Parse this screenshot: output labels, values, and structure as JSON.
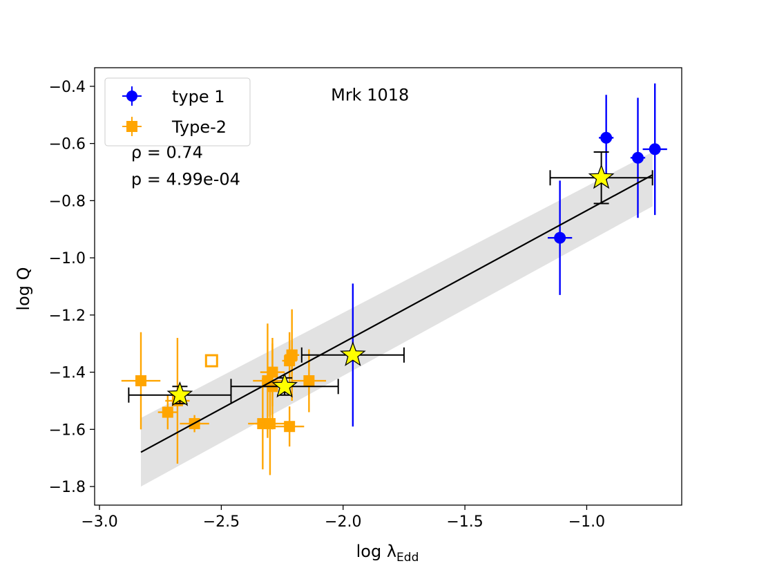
{
  "chart_data": {
    "type": "scatter",
    "title": "",
    "xlabel": "log λ",
    "xlabel_sub": "Edd",
    "ylabel": "log Q",
    "xlim": [
      -3.02,
      -0.61
    ],
    "ylim": [
      -1.865,
      -0.335
    ],
    "xticks": [
      -3.0,
      -2.5,
      -2.0,
      -1.5,
      -1.0
    ],
    "xtick_labels": [
      "−3.0",
      "−2.5",
      "−2.0",
      "−1.5",
      "−1.0"
    ],
    "yticks": [
      -1.8,
      -1.6,
      -1.4,
      -1.2,
      -1.0,
      -0.8,
      -0.6,
      -0.4
    ],
    "ytick_labels": [
      "−1.8",
      "−1.6",
      "−1.4",
      "−1.2",
      "−1.0",
      "−0.8",
      "−0.6",
      "−0.4"
    ],
    "grid": false,
    "legend": {
      "location": "upper-left",
      "entries": [
        {
          "label": "type 1",
          "marker": "circle",
          "color": "#0000ff"
        },
        {
          "label": "Type-2",
          "marker": "square",
          "color": "#ffa500"
        }
      ]
    },
    "annotations": [
      {
        "text": "Mrk 1018",
        "x": -2.05,
        "y": -0.45
      },
      {
        "text": "ρ = 0.74",
        "x": -2.87,
        "y": -0.65
      },
      {
        "text": "p = 4.99e-04",
        "x": -2.87,
        "y": -0.745
      }
    ],
    "fit_line": {
      "x": [
        -2.83,
        -0.73
      ],
      "y": [
        -1.68,
        -0.71
      ],
      "color": "#000000"
    },
    "confidence_band": {
      "x": [
        -2.83,
        -0.73
      ],
      "upper": [
        -1.56,
        -0.63
      ],
      "lower": [
        -1.8,
        -0.82
      ],
      "color": "#dddddd"
    },
    "series": [
      {
        "name": "type 1",
        "marker": "circle",
        "color": "#0000ff",
        "points": [
          {
            "x": -0.92,
            "y": -0.58,
            "xerr": 0.03,
            "yerr": 0.15
          },
          {
            "x": -0.79,
            "y": -0.65,
            "xerr": 0.03,
            "yerr": 0.21
          },
          {
            "x": -0.72,
            "y": -0.62,
            "xerr": 0.05,
            "yerr": 0.23
          },
          {
            "x": -1.11,
            "y": -0.93,
            "xerr": 0.05,
            "yerr": 0.2
          },
          {
            "x": -1.96,
            "y": -1.34,
            "xerr": 0.0,
            "yerr": 0.25
          }
        ]
      },
      {
        "name": "Type-2",
        "marker": "square",
        "color": "#ffa500",
        "points": [
          {
            "x": -2.83,
            "y": -1.43,
            "xerr": 0.08,
            "yerr": 0.17
          },
          {
            "x": -2.72,
            "y": -1.54,
            "xerr": 0.04,
            "yerr": 0.06
          },
          {
            "x": -2.68,
            "y": -1.5,
            "xerr": 0.05,
            "yerr": 0.22
          },
          {
            "x": -2.61,
            "y": -1.58,
            "xerr": 0.06,
            "yerr": 0.03
          },
          {
            "x": -2.31,
            "y": -1.43,
            "xerr": 0.06,
            "yerr": 0.2
          },
          {
            "x": -2.29,
            "y": -1.4,
            "xerr": 0.05,
            "yerr": 0.12
          },
          {
            "x": -2.29,
            "y": -1.45,
            "xerr": 0.04,
            "yerr": 0.15
          },
          {
            "x": -2.33,
            "y": -1.58,
            "xerr": 0.06,
            "yerr": 0.16
          },
          {
            "x": -2.3,
            "y": -1.58,
            "xerr": 0.06,
            "yerr": 0.18
          },
          {
            "x": -2.22,
            "y": -1.36,
            "xerr": 0.03,
            "yerr": 0.1
          },
          {
            "x": -2.21,
            "y": -1.34,
            "xerr": 0.03,
            "yerr": 0.16
          },
          {
            "x": -2.22,
            "y": -1.59,
            "xerr": 0.06,
            "yerr": 0.07
          },
          {
            "x": -2.14,
            "y": -1.43,
            "xerr": 0.07,
            "yerr": 0.11
          },
          {
            "x": -2.21,
            "y": -1.34,
            "xerr": 0.02,
            "yerr": 0.05
          }
        ]
      },
      {
        "name": "",
        "marker": "open-square",
        "color": "#ffa500",
        "points": [
          {
            "x": -2.54,
            "y": -1.36,
            "xerr": 0.0,
            "yerr": 0.0
          }
        ]
      },
      {
        "name": "",
        "marker": "star",
        "color": "#ffff00",
        "edgecolor": "#000000",
        "points": [
          {
            "x": -2.67,
            "y": -1.48,
            "xerr": 0.21,
            "yerr": 0.03
          },
          {
            "x": -2.24,
            "y": -1.45,
            "xerr": 0.22,
            "yerr": 0.03
          },
          {
            "x": -1.96,
            "y": -1.34,
            "xerr": 0.21,
            "yerr": 0.0
          },
          {
            "x": -0.94,
            "y": -0.72,
            "xerr": 0.21,
            "yerr": 0.09
          }
        ]
      }
    ]
  }
}
